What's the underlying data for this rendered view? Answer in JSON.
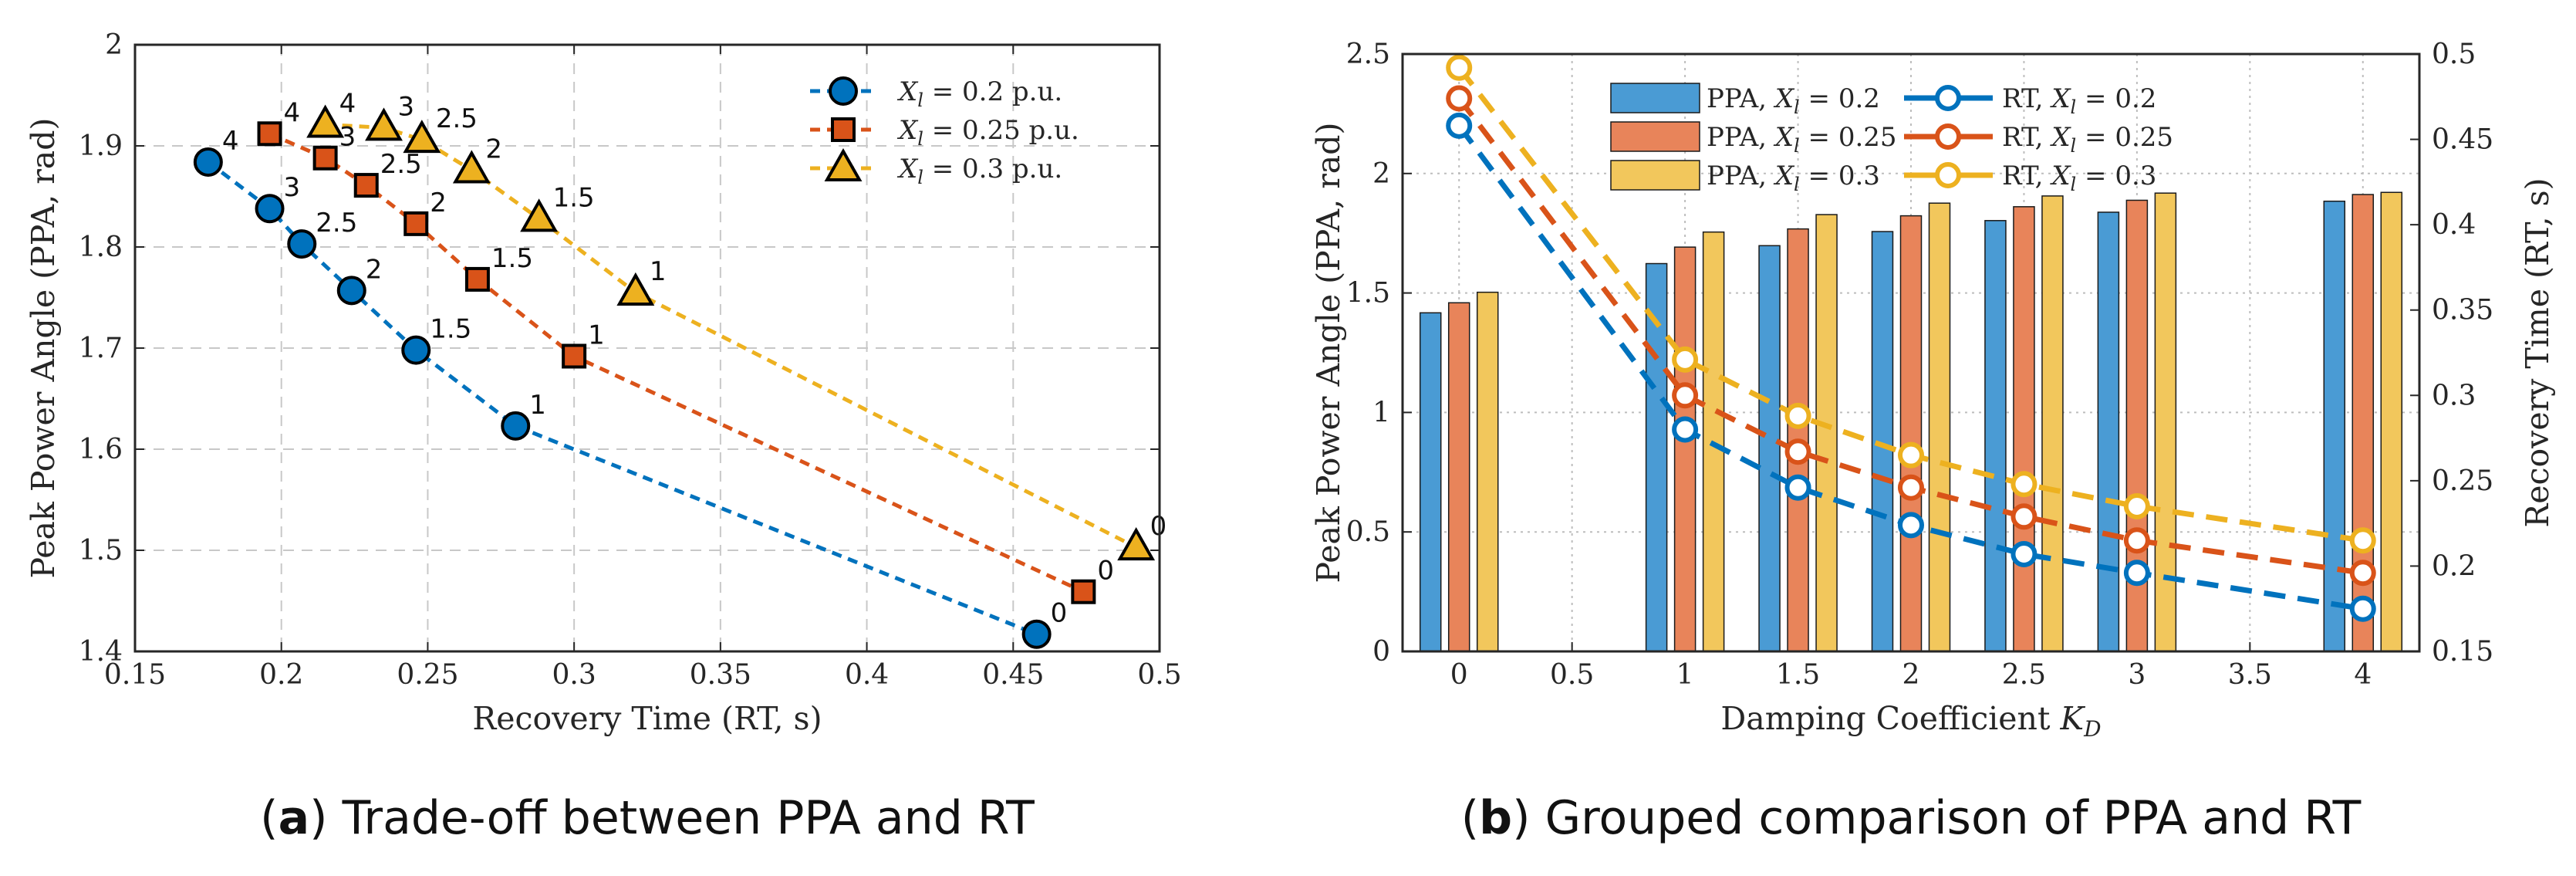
{
  "colors": {
    "blue": "#0072BD",
    "orange": "#D95319",
    "yellow": "#EDB120",
    "blue_fill": "#4A9BD4",
    "orange_fill": "#E8845A",
    "yellow_fill": "#F2C75C"
  },
  "chart_data": [
    {
      "type": "scatter",
      "title": "",
      "xlabel": "Recovery Time (RT, s)",
      "ylabel": "Peak Power Angle (PPA, rad)",
      "xlim": [
        0.15,
        0.5
      ],
      "ylim": [
        1.4,
        2.0
      ],
      "xticks": [
        "0.15",
        "0.2",
        "0.25",
        "0.3",
        "0.35",
        "0.4",
        "0.45",
        "0.5"
      ],
      "yticks": [
        "1.4",
        "1.5",
        "1.6",
        "1.7",
        "1.8",
        "1.9",
        "2"
      ],
      "grid": true,
      "legend_position": "top-right",
      "series": [
        {
          "name": "X_l = 0.2 p.u.",
          "legend_var": "X",
          "legend_sub": "l",
          "legend_rest": " = 0.2 p.u.",
          "marker": "circle",
          "color_key": "blue",
          "points": [
            {
              "label": "4",
              "x": 0.175,
              "y": 1.884
            },
            {
              "label": "3",
              "x": 0.196,
              "y": 1.838
            },
            {
              "label": "2.5",
              "x": 0.207,
              "y": 1.803
            },
            {
              "label": "2",
              "x": 0.224,
              "y": 1.757
            },
            {
              "label": "1.5",
              "x": 0.246,
              "y": 1.698
            },
            {
              "label": "1",
              "x": 0.28,
              "y": 1.623
            },
            {
              "label": "0",
              "x": 0.458,
              "y": 1.417
            }
          ]
        },
        {
          "name": "X_l = 0.25 p.u.",
          "legend_var": "X",
          "legend_sub": "l",
          "legend_rest": " = 0.25 p.u.",
          "marker": "square",
          "color_key": "orange",
          "points": [
            {
              "label": "4",
              "x": 0.196,
              "y": 1.912
            },
            {
              "label": "3",
              "x": 0.215,
              "y": 1.888
            },
            {
              "label": "2.5",
              "x": 0.229,
              "y": 1.861
            },
            {
              "label": "2",
              "x": 0.246,
              "y": 1.823
            },
            {
              "label": "1.5",
              "x": 0.267,
              "y": 1.768
            },
            {
              "label": "1",
              "x": 0.3,
              "y": 1.692
            },
            {
              "label": "0",
              "x": 0.474,
              "y": 1.459
            }
          ]
        },
        {
          "name": "X_l = 0.3 p.u.",
          "legend_var": "X",
          "legend_sub": "l",
          "legend_rest": " = 0.3 p.u.",
          "marker": "triangle",
          "color_key": "yellow",
          "points": [
            {
              "label": "4",
              "x": 0.215,
              "y": 1.921
            },
            {
              "label": "3",
              "x": 0.235,
              "y": 1.918
            },
            {
              "label": "2.5",
              "x": 0.248,
              "y": 1.906
            },
            {
              "label": "2",
              "x": 0.265,
              "y": 1.876
            },
            {
              "label": "1.5",
              "x": 0.288,
              "y": 1.828
            },
            {
              "label": "1",
              "x": 0.321,
              "y": 1.755
            },
            {
              "label": "0",
              "x": 0.492,
              "y": 1.503
            }
          ]
        }
      ],
      "caption_letter": "a",
      "caption_text": "Trade-off between PPA and RT"
    },
    {
      "type": "bar",
      "title": "",
      "xlabel_main": "Damping Coefficient ",
      "xlabel_var": "K",
      "xlabel_sub": "D",
      "ylabel_left": "Peak Power Angle (PPA, rad)",
      "ylabel_right": "Recovery Time (RT, s)",
      "xlim": [
        -0.25,
        4.25
      ],
      "ylim_left": [
        0,
        2.5
      ],
      "ylim_right": [
        0.15,
        0.5
      ],
      "xticks": [
        "0",
        "0.5",
        "1",
        "1.5",
        "2",
        "2.5",
        "3",
        "3.5",
        "4"
      ],
      "yticks_left": [
        "0",
        "0.5",
        "1",
        "1.5",
        "2",
        "2.5"
      ],
      "yticks_right": [
        "0.15",
        "0.2",
        "0.25",
        "0.3",
        "0.35",
        "0.4",
        "0.45",
        "0.5"
      ],
      "grid": true,
      "legend_position": "top-center",
      "categories": [
        0,
        1,
        1.5,
        2,
        2.5,
        3,
        4
      ],
      "series": [
        {
          "name": "PPA, X_l = 0.2",
          "legend_prefix": "PPA, ",
          "legend_var": "X",
          "legend_sub": "l",
          "legend_rest": " = 0.2",
          "axis": "left",
          "kind": "bar",
          "color_key": "blue",
          "values": [
            1.417,
            1.623,
            1.698,
            1.757,
            1.803,
            1.838,
            1.884
          ]
        },
        {
          "name": "PPA, X_l = 0.25",
          "legend_prefix": "PPA, ",
          "legend_var": "X",
          "legend_sub": "l",
          "legend_rest": " = 0.25",
          "axis": "left",
          "kind": "bar",
          "color_key": "orange",
          "values": [
            1.459,
            1.692,
            1.768,
            1.823,
            1.861,
            1.888,
            1.912
          ]
        },
        {
          "name": "PPA, X_l = 0.3",
          "legend_prefix": "PPA, ",
          "legend_var": "X",
          "legend_sub": "l",
          "legend_rest": " = 0.3",
          "axis": "left",
          "kind": "bar",
          "color_key": "yellow",
          "values": [
            1.503,
            1.755,
            1.828,
            1.876,
            1.906,
            1.918,
            1.921
          ]
        },
        {
          "name": "RT, X_l = 0.2",
          "legend_prefix": "RT, ",
          "legend_var": "X",
          "legend_sub": "l",
          "legend_rest": " = 0.2",
          "axis": "right",
          "kind": "line",
          "color_key": "blue",
          "values": [
            0.458,
            0.28,
            0.246,
            0.224,
            0.207,
            0.196,
            0.175
          ]
        },
        {
          "name": "RT, X_l = 0.25",
          "legend_prefix": "RT, ",
          "legend_var": "X",
          "legend_sub": "l",
          "legend_rest": " = 0.25",
          "axis": "right",
          "kind": "line",
          "color_key": "orange",
          "values": [
            0.474,
            0.3,
            0.267,
            0.246,
            0.229,
            0.215,
            0.196
          ]
        },
        {
          "name": "RT, X_l = 0.3",
          "legend_prefix": "RT, ",
          "legend_var": "X",
          "legend_sub": "l",
          "legend_rest": " = 0.3",
          "axis": "right",
          "kind": "line",
          "color_key": "yellow",
          "values": [
            0.492,
            0.321,
            0.288,
            0.265,
            0.248,
            0.235,
            0.215
          ]
        }
      ],
      "caption_letter": "b",
      "caption_text": "Grouped comparison of PPA and RT"
    }
  ]
}
